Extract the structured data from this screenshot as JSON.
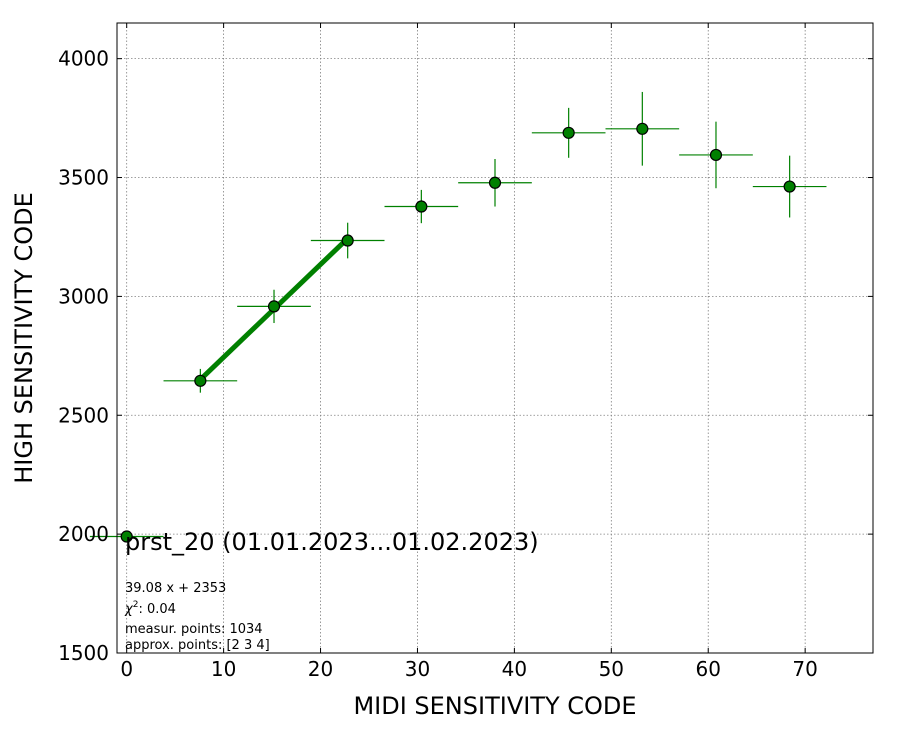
{
  "chart_data": {
    "type": "scatter",
    "title": "prst_20 (01.01.2023...01.02.2023)",
    "xlabel": "MIDI SENSITIVITY CODE",
    "ylabel": "HIGH SENSITIVITY CODE",
    "xlim": [
      -1,
      77
    ],
    "ylim": [
      1500,
      4150
    ],
    "xticks": [
      0,
      10,
      20,
      30,
      40,
      50,
      60,
      70
    ],
    "yticks": [
      1500,
      2000,
      2500,
      3000,
      3500,
      4000
    ],
    "grid": true,
    "colors": {
      "marker": "#008000",
      "marker_edge": "#000000",
      "errorbar": "#008000",
      "fit_line": "#008000"
    },
    "points": [
      {
        "x": 0,
        "y": 1990,
        "xerr": 3.8,
        "yerr": 0
      },
      {
        "x": 7.6,
        "y": 2645,
        "xerr": 3.8,
        "yerr": 50
      },
      {
        "x": 15.2,
        "y": 2958,
        "xerr": 3.8,
        "yerr": 70
      },
      {
        "x": 22.8,
        "y": 3235,
        "xerr": 3.8,
        "yerr": 75
      },
      {
        "x": 30.4,
        "y": 3378,
        "xerr": 3.8,
        "yerr": 70
      },
      {
        "x": 38.0,
        "y": 3478,
        "xerr": 3.8,
        "yerr": 100
      },
      {
        "x": 45.6,
        "y": 3688,
        "xerr": 3.8,
        "yerr": 105
      },
      {
        "x": 53.2,
        "y": 3705,
        "xerr": 3.8,
        "yerr": 155
      },
      {
        "x": 60.8,
        "y": 3595,
        "xerr": 3.8,
        "yerr": 140
      },
      {
        "x": 68.4,
        "y": 3462,
        "xerr": 3.8,
        "yerr": 130
      }
    ],
    "fit": {
      "slope": 39.08,
      "intercept": 2353,
      "x_range": [
        7.6,
        22.8
      ]
    },
    "annotations": {
      "equation": "39.08 x + 2353",
      "chi2_label": "χ",
      "chi2_sup": "2",
      "chi2_value": ": 0.04",
      "measur_points": "measur. points: 1034",
      "approx_points": "approx. points: [2 3 4]"
    }
  }
}
